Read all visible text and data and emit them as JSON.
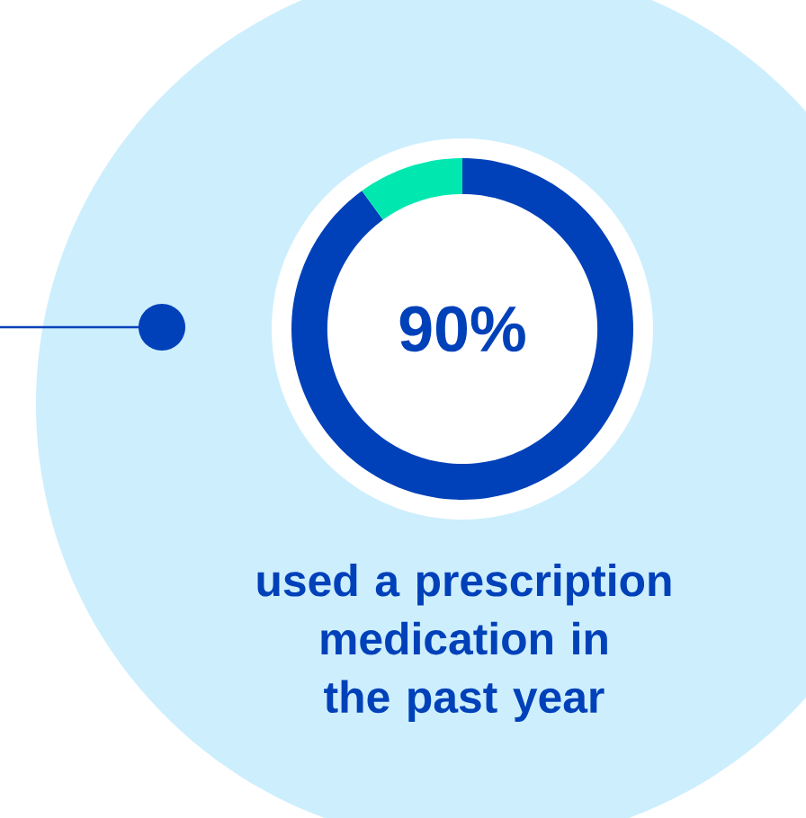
{
  "chart_data": {
    "type": "donut",
    "categories": [
      null,
      null
    ],
    "values": [
      90,
      10
    ],
    "colors": [
      "#0041b9",
      "#00e8b0"
    ],
    "value_labels": [
      "90%",
      null
    ],
    "annotations": [
      "used a prescription medication in the past year"
    ]
  }
}
